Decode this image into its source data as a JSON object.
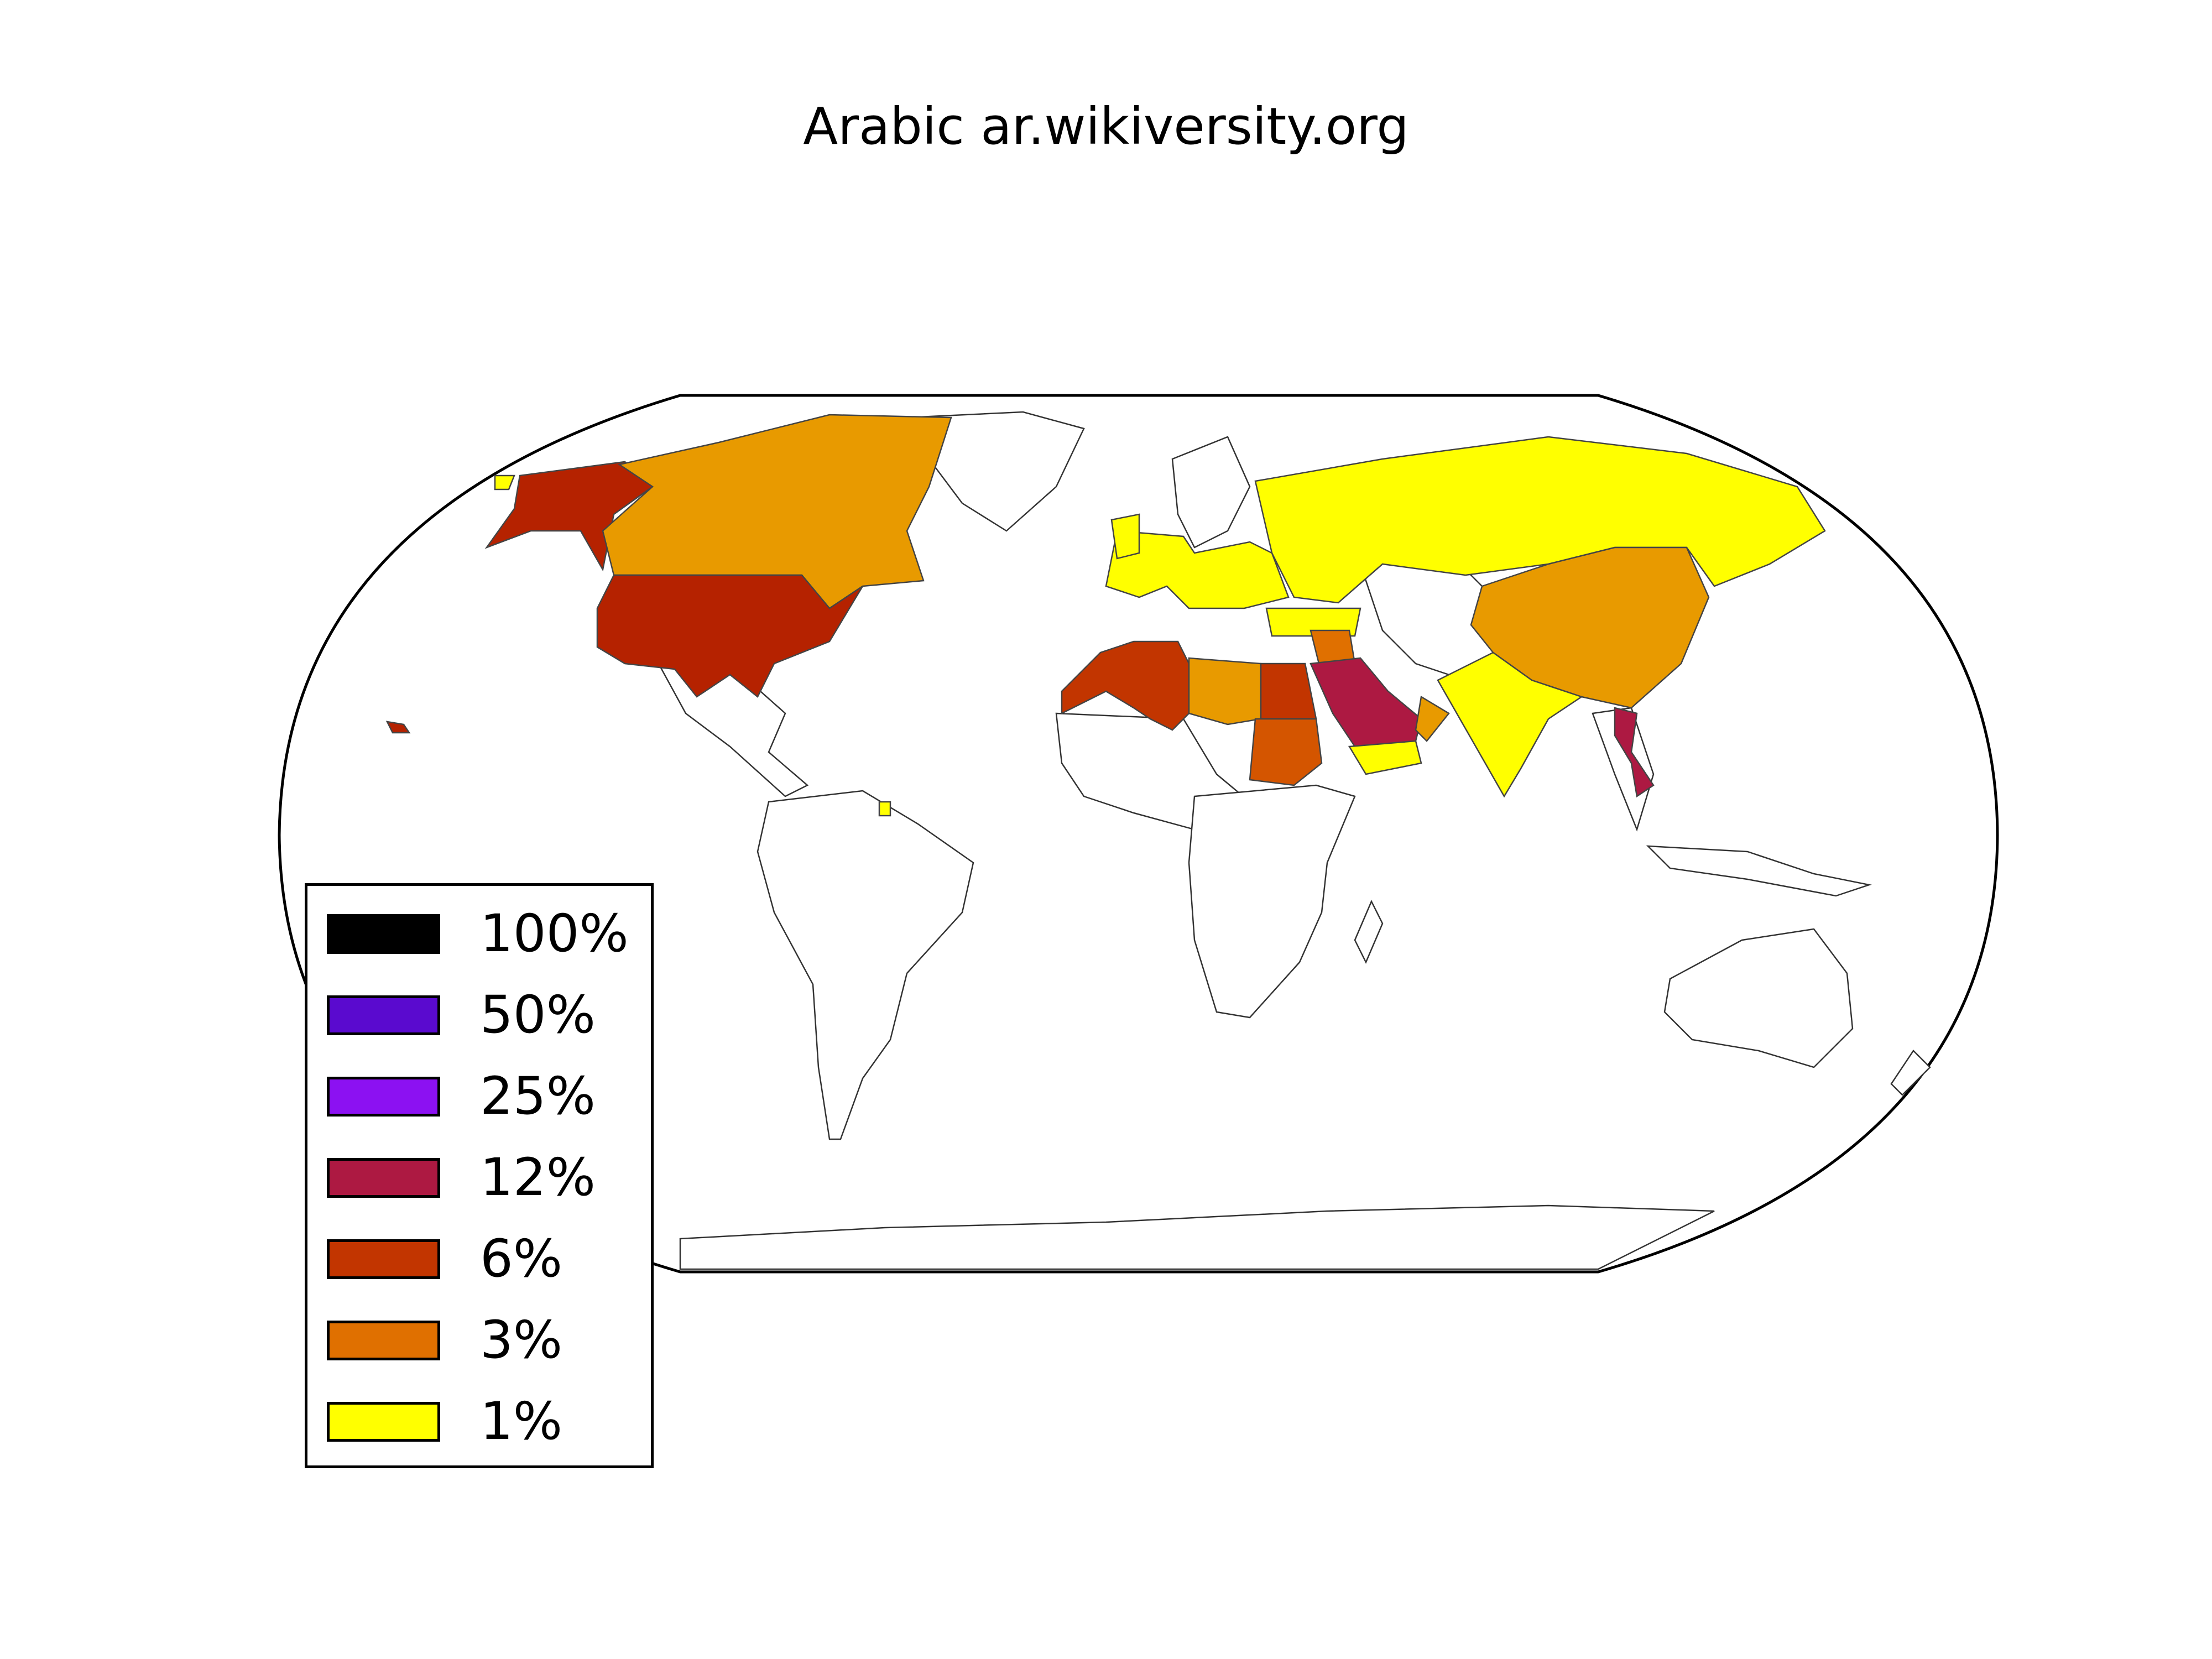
{
  "title": "Arabic ar.wikiversity.org",
  "legend": {
    "items": [
      {
        "label": "100%",
        "color": "#000000"
      },
      {
        "label": "50%",
        "color": "#5a0acf"
      },
      {
        "label": "25%",
        "color": "#8c11f2"
      },
      {
        "label": "12%",
        "color": "#ad1942"
      },
      {
        "label": "6%",
        "color": "#c23500"
      },
      {
        "label": "3%",
        "color": "#e07000"
      },
      {
        "label": "1%",
        "color": "#ffff00"
      }
    ]
  },
  "regions": [
    {
      "name": "Alaska",
      "color": "#b52200"
    },
    {
      "name": "Canada",
      "color": "#e89a00"
    },
    {
      "name": "United States",
      "color": "#b52200"
    },
    {
      "name": "Russia",
      "color": "#ffff00"
    },
    {
      "name": "Western Europe",
      "color": "#ffff00"
    },
    {
      "name": "Morocco and Algeria",
      "color": "#c23500"
    },
    {
      "name": "Libya",
      "color": "#e89a00"
    },
    {
      "name": "Egypt",
      "color": "#c23500"
    },
    {
      "name": "Sudan",
      "color": "#d45500"
    },
    {
      "name": "Saudi Arabia",
      "color": "#ad1942"
    },
    {
      "name": "Yemen",
      "color": "#ffff00"
    },
    {
      "name": "Turkey",
      "color": "#ffff00"
    },
    {
      "name": "China",
      "color": "#e89a00"
    },
    {
      "name": "India",
      "color": "#ffff00"
    },
    {
      "name": "Vietnam",
      "color": "#ad1942"
    }
  ]
}
